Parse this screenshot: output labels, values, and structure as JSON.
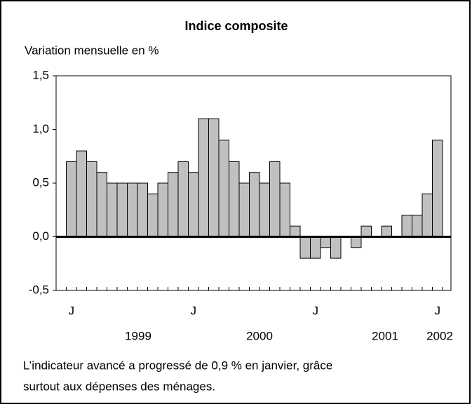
{
  "chart_data": {
    "type": "bar",
    "title": "Indice composite",
    "subtitle": "Variation mensuelle en %",
    "categories": [
      "J",
      null,
      null,
      null,
      null,
      null,
      null,
      null,
      null,
      null,
      null,
      null,
      "J",
      null,
      null,
      null,
      null,
      null,
      null,
      null,
      null,
      null,
      null,
      null,
      "J",
      null,
      null,
      null,
      null,
      null,
      null,
      null,
      null,
      null,
      null,
      null,
      "J"
    ],
    "year_labels": [
      "1999",
      "2000",
      "2001",
      "2002"
    ],
    "values": [
      0.7,
      0.8,
      0.7,
      0.6,
      0.5,
      0.5,
      0.5,
      0.5,
      0.4,
      0.5,
      0.6,
      0.7,
      0.6,
      1.1,
      1.1,
      0.9,
      0.7,
      0.5,
      0.6,
      0.5,
      0.7,
      0.5,
      0.1,
      -0.2,
      -0.2,
      -0.1,
      -0.2,
      0,
      -0.1,
      0.1,
      0,
      0.1,
      0,
      0.2,
      0.2,
      0.4,
      0.9
    ],
    "color": "#c0c0c0",
    "ylim": [
      -0.5,
      1.5
    ],
    "yticks": [
      {
        "value": -0.5,
        "label": "-0,5"
      },
      {
        "value": 0,
        "label": "0,0"
      },
      {
        "value": 0.5,
        "label": "0,5"
      },
      {
        "value": 1,
        "label": "1,0"
      },
      {
        "value": 1.5,
        "label": "1,5"
      }
    ],
    "note": [
      "L’indicateur avancé a progressé de 0,9 % en janvier, grâce",
      "surtout aux dépenses des ménages."
    ]
  }
}
